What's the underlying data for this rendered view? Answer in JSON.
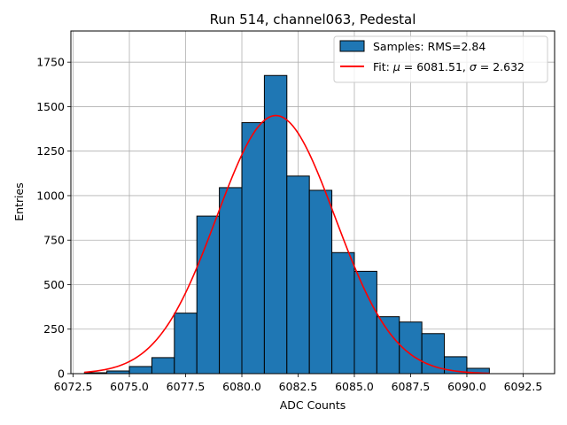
{
  "chart_data": {
    "type": "bar",
    "title": "Run 514, channel063, Pedestal",
    "xlabel": "ADC Counts",
    "ylabel": "Entries",
    "xlim": [
      6072.4,
      6093.9
    ],
    "ylim": [
      0,
      1925
    ],
    "grid": true,
    "legend_position": "top-right",
    "xticks": [
      6072.5,
      6075.0,
      6077.5,
      6080.0,
      6082.5,
      6085.0,
      6087.5,
      6090.0,
      6092.5
    ],
    "xtick_labels": [
      "6072.5",
      "6075.0",
      "6077.5",
      "6080.0",
      "6082.5",
      "6085.0",
      "6087.5",
      "6090.0",
      "6092.5"
    ],
    "yticks": [
      0,
      250,
      500,
      750,
      1000,
      1250,
      1500,
      1750
    ],
    "ytick_labels": [
      "0",
      "250",
      "500",
      "750",
      "1000",
      "1250",
      "1500",
      "1750"
    ],
    "histogram": {
      "name": "Samples: RMS=2.84",
      "color": "#1f77b4",
      "edge_color": "#000000",
      "bin_edges": [
        6073,
        6074,
        6075,
        6076,
        6077,
        6078,
        6079,
        6080,
        6081,
        6082,
        6083,
        6084,
        6085,
        6086,
        6087,
        6088,
        6089,
        6090,
        6091
      ],
      "counts": [
        5,
        15,
        40,
        90,
        340,
        885,
        1045,
        1410,
        1675,
        1110,
        1030,
        680,
        575,
        320,
        290,
        225,
        95,
        30
      ]
    },
    "fit": {
      "name": "Fit: μ = 6081.51, σ = 2.632",
      "legend_prefix": "Fit: ",
      "mu_symbol": "μ",
      "mu_text": " = 6081.51, ",
      "sigma_symbol": "σ",
      "sigma_text": " = 2.632",
      "color": "#ff0000",
      "mu": 6081.51,
      "sigma": 2.632,
      "amplitude": 1450,
      "x_range": [
        6073,
        6091
      ]
    }
  }
}
